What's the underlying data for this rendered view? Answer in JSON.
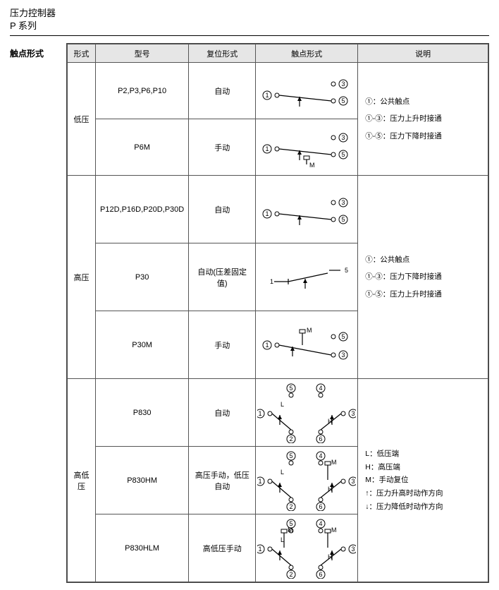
{
  "header": {
    "line1": "压力控制器",
    "line2": "P 系列"
  },
  "section_label": "触点形式",
  "columns": {
    "c1": "形式",
    "c2": "型号",
    "c3": "复位形式",
    "c4": "触点形式",
    "c5": "说明"
  },
  "groups": [
    {
      "type_label": "低压",
      "rows": [
        {
          "model": "P2,P3,P6,P10",
          "reset": "自动",
          "chart": "spdt_a"
        },
        {
          "model": "P6M",
          "reset": "手动",
          "chart": "spdt_m"
        }
      ],
      "desc": [
        "①：公共触点",
        "",
        "①-③：压力上升时接通",
        "",
        "①-⑤：压力下降时接通"
      ]
    },
    {
      "type_label": "高压",
      "rows": [
        {
          "model": "P12D,P16D,P20D,P30D",
          "reset": "自动",
          "chart": "spdt_a"
        },
        {
          "model": "P30",
          "reset": "自动(压差固定值)",
          "chart": "spst"
        },
        {
          "model": "P30M",
          "reset": "手动",
          "chart": "spdt_m_rev"
        }
      ],
      "desc": [
        "①：公共触点",
        "",
        "①-③：压力下降时接通",
        "",
        "①-⑤：压力上升时接通"
      ]
    },
    {
      "type_label": "高低压",
      "rows": [
        {
          "model": "P830",
          "reset": "自动",
          "chart": "dpdt_a"
        },
        {
          "model": "P830HM",
          "reset": "高压手动，低压自动",
          "chart": "dpdt_hm"
        },
        {
          "model": "P830HLM",
          "reset": "高低压手动",
          "chart": "dpdt_hlm"
        }
      ],
      "desc": [
        "L：低压端",
        "H：高压端",
        "M：手动复位",
        "↑：压力升高时动作方向",
        "↓：压力降低时动作方向"
      ]
    }
  ],
  "style": {
    "header_bg": "#e6e6e6",
    "border_color": "#555555",
    "font_body": 11,
    "font_desc": 10.5,
    "terminal_r": 4,
    "circle_num_r": 6
  }
}
